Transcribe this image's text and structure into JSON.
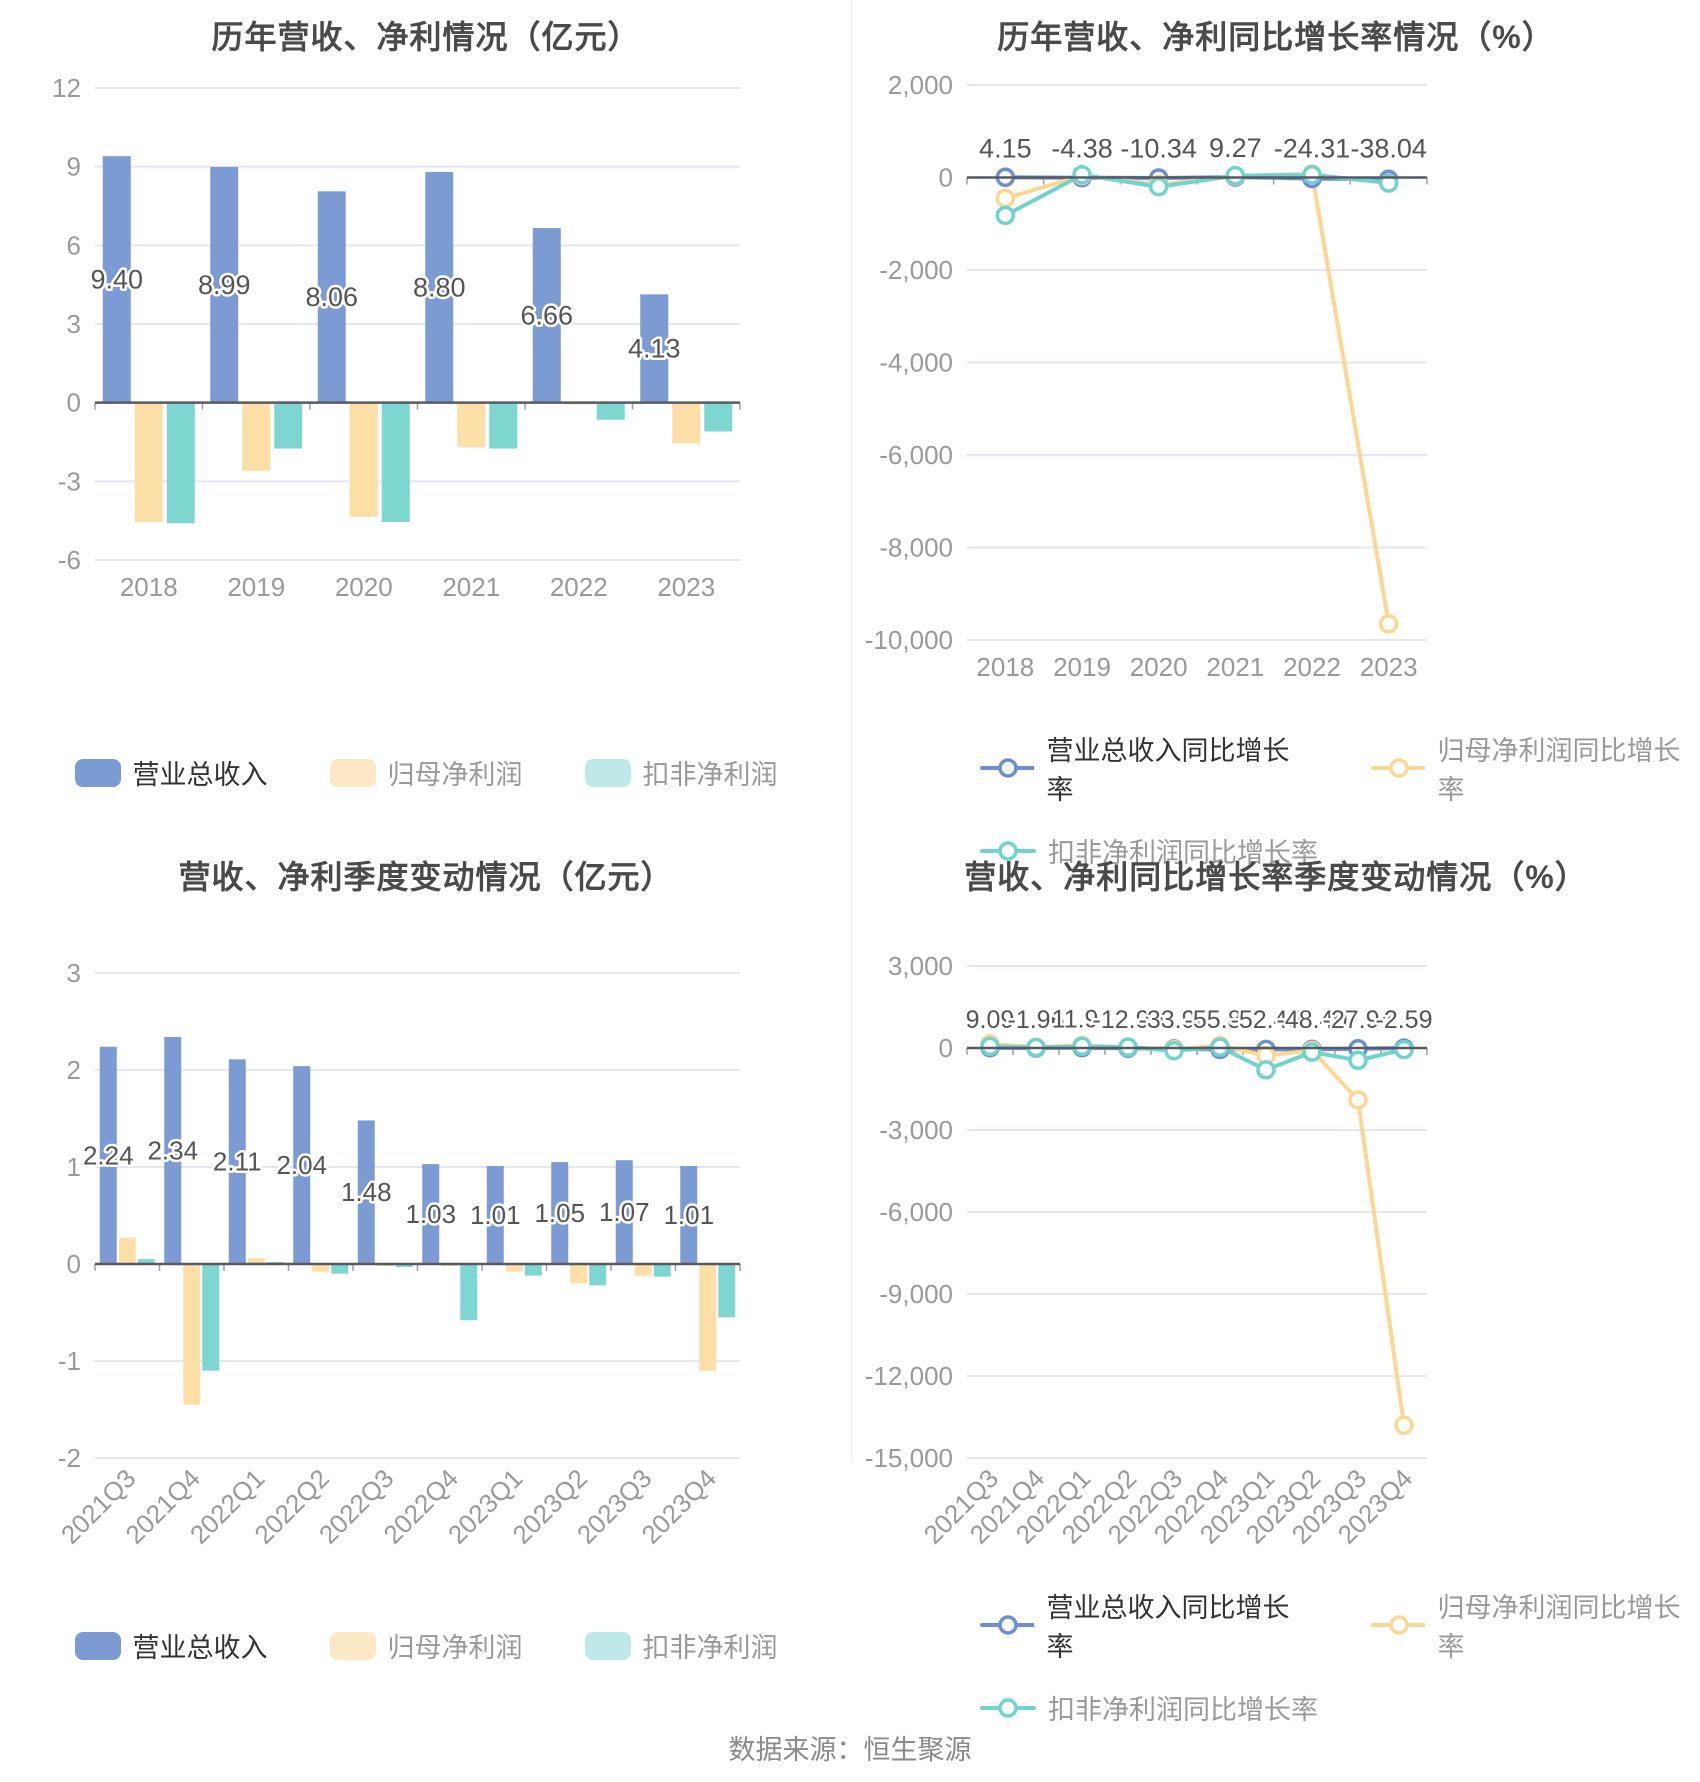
{
  "footer": {
    "source": "数据来源：恒生聚源"
  },
  "colors": {
    "bar_blue": "#7C9BD2",
    "bar_yellow": "#FBDFA6",
    "bar_teal": "#7ED6D0",
    "legend_yellow": "#FCE8C5",
    "legend_teal": "#BFE9E8",
    "line_blue": "#6C8FD3",
    "line_yellow": "#FBD793",
    "line_teal": "#70D4CC",
    "title": "#4A4A4A",
    "axis_text": "#999999",
    "label_text": "#555555",
    "grid": "#E3E7F4",
    "axis_line": "#555A63",
    "legend_text_active": "#333333",
    "legend_text": "#999999",
    "divider": "#EAEAEC"
  },
  "chart_data": [
    {
      "id": "annual-bars",
      "type": "bar",
      "title": "历年营收、净利情况（亿元）",
      "categories": [
        "2018",
        "2019",
        "2020",
        "2021",
        "2022",
        "2023"
      ],
      "yticks": [
        12,
        9,
        6,
        3,
        0,
        -3,
        -6
      ],
      "ylim": [
        -6,
        12
      ],
      "grid": true,
      "legend_position": "bottom",
      "series": [
        {
          "name": "营业总收入",
          "values": [
            9.4,
            8.99,
            8.06,
            8.8,
            6.66,
            4.13
          ],
          "labels": [
            "9.40",
            "8.99",
            "8.06",
            "8.80",
            "6.66",
            "4.13"
          ]
        },
        {
          "name": "归母净利润",
          "values": [
            -4.55,
            -2.6,
            -4.35,
            -1.7,
            -0.05,
            -1.55
          ]
        },
        {
          "name": "扣非净利润",
          "values": [
            -4.6,
            -1.75,
            -4.55,
            -1.75,
            -0.65,
            -1.1
          ]
        }
      ]
    },
    {
      "id": "annual-growth",
      "type": "line",
      "title": "历年营收、净利同比增长率情况（%）",
      "categories": [
        "2018",
        "2019",
        "2020",
        "2021",
        "2022",
        "2023"
      ],
      "yticks": [
        2000,
        0,
        -2000,
        -4000,
        -6000,
        -8000,
        -10000
      ],
      "ylim": [
        -10000,
        2000
      ],
      "grid": true,
      "legend_position": "bottom",
      "series": [
        {
          "name": "营业总收入同比增长率",
          "values": [
            4.15,
            -4.38,
            -10.34,
            9.27,
            -24.31,
            -38.04
          ],
          "labels": [
            "4.15",
            "-4.38",
            "-10.34",
            "9.27",
            "-24.31",
            "-38.04"
          ]
        },
        {
          "name": "归母净利润同比增长率",
          "values": [
            -450,
            40,
            -150,
            30,
            80,
            -9650
          ]
        },
        {
          "name": "扣非净利润同比增长率",
          "values": [
            -820,
            60,
            -200,
            40,
            60,
            -120
          ]
        }
      ]
    },
    {
      "id": "quarterly-bars",
      "type": "bar",
      "title": "营收、净利季度变动情况（亿元）",
      "categories": [
        "2021Q3",
        "2021Q4",
        "2022Q1",
        "2022Q2",
        "2022Q3",
        "2022Q4",
        "2023Q1",
        "2023Q2",
        "2023Q3",
        "2023Q4"
      ],
      "yticks": [
        3,
        2,
        1,
        0,
        -1,
        -2
      ],
      "ylim": [
        -2,
        3
      ],
      "grid": true,
      "rotated_x_labels": true,
      "legend_position": "bottom",
      "series": [
        {
          "name": "营业总收入",
          "values": [
            2.24,
            2.34,
            2.11,
            2.04,
            1.48,
            1.03,
            1.01,
            1.05,
            1.07,
            1.01
          ],
          "labels": [
            "2.24",
            "2.34",
            "2.11",
            "2.04",
            "1.48",
            "1.03",
            "1.01",
            "1.05",
            "1.07",
            "1.01"
          ]
        },
        {
          "name": "归母净利润",
          "values": [
            0.27,
            -1.45,
            0.06,
            -0.08,
            -0.02,
            -0.02,
            -0.08,
            -0.2,
            -0.12,
            -1.1
          ]
        },
        {
          "name": "扣非净利润",
          "values": [
            0.05,
            -1.1,
            0.02,
            -0.1,
            -0.03,
            -0.58,
            -0.12,
            -0.22,
            -0.13,
            -0.55
          ]
        }
      ]
    },
    {
      "id": "quarterly-growth",
      "type": "line",
      "title": "营收、净利同比增长率季度变动情况（%）",
      "categories": [
        "2021Q3",
        "2021Q4",
        "2022Q1",
        "2022Q2",
        "2022Q3",
        "2022Q4",
        "2023Q1",
        "2023Q2",
        "2023Q3",
        "2023Q4"
      ],
      "yticks": [
        3000,
        0,
        -3000,
        -6000,
        -9000,
        -12000,
        -15000
      ],
      "ylim": [
        -15000,
        3000
      ],
      "grid": true,
      "rotated_x_labels": true,
      "legend_position": "bottom",
      "series": [
        {
          "name": "营业总收入同比增长率",
          "values": [
            9.09,
            -1.96,
            11.91,
            -12.9,
            -33.96,
            -55.81,
            -52.45,
            -48.4,
            -27.94,
            -2.59
          ],
          "labels": [
            "9.09",
            "-1.96",
            "11.91",
            "-12.90",
            "-33.96",
            "-55.81",
            "-52.45",
            "-48.40",
            "-27.94",
            "-2.59"
          ]
        },
        {
          "name": "归母净利润同比增长率",
          "values": [
            150,
            30,
            90,
            30,
            -60,
            90,
            -280,
            -90,
            -1900,
            -13800
          ]
        },
        {
          "name": "扣非净利润同比增长率",
          "values": [
            60,
            20,
            60,
            30,
            -100,
            30,
            -800,
            -150,
            -450,
            -60
          ]
        }
      ]
    }
  ]
}
